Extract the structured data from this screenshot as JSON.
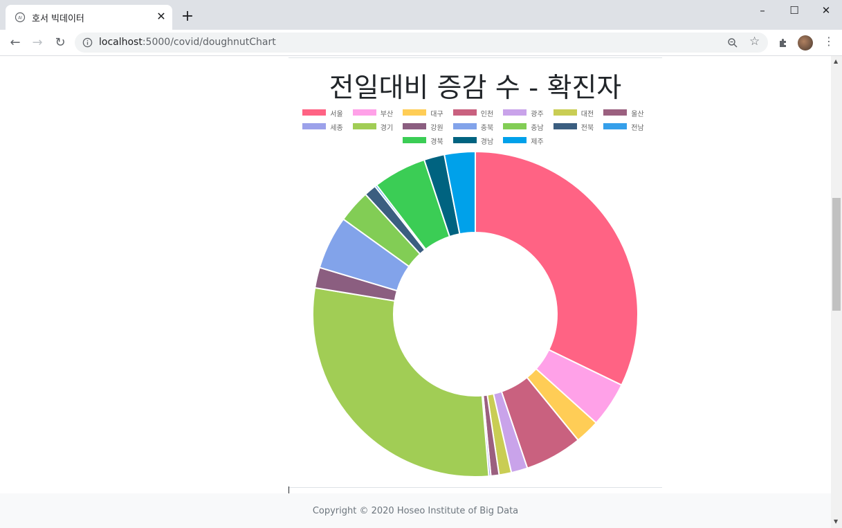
{
  "browser": {
    "tab_title": "호서 빅데이터",
    "url_host": "localhost",
    "url_rest": ":5000/covid/doughnutChart"
  },
  "page": {
    "copyright": "Copyright © 2020 Hoseo Institute of Big Data"
  },
  "chart_data": {
    "type": "doughnut",
    "title": "전일대비 증감 수 - 확진자",
    "legend_position": "top",
    "categories": [
      "서울",
      "부산",
      "대구",
      "인천",
      "광주",
      "대전",
      "울산",
      "세종",
      "경기",
      "강원",
      "충북",
      "충남",
      "전북",
      "전남",
      "경북",
      "경남",
      "제주"
    ],
    "values": [
      79,
      11,
      6,
      14,
      4,
      3,
      2,
      0.5,
      71,
      5,
      13,
      8,
      3,
      0.5,
      13,
      5,
      7.5
    ],
    "colors": [
      "#ff6384",
      "#ffa1e8",
      "#ffcd56",
      "#c9617f",
      "#c9a3ea",
      "#c9cd54",
      "#9b607f",
      "#9ca1ea",
      "#a1cd55",
      "#8b5e80",
      "#82a3ea",
      "#82cd55",
      "#3b5e80",
      "#359fea",
      "#3bcd55",
      "#006380",
      "#00a1ea"
    ]
  }
}
